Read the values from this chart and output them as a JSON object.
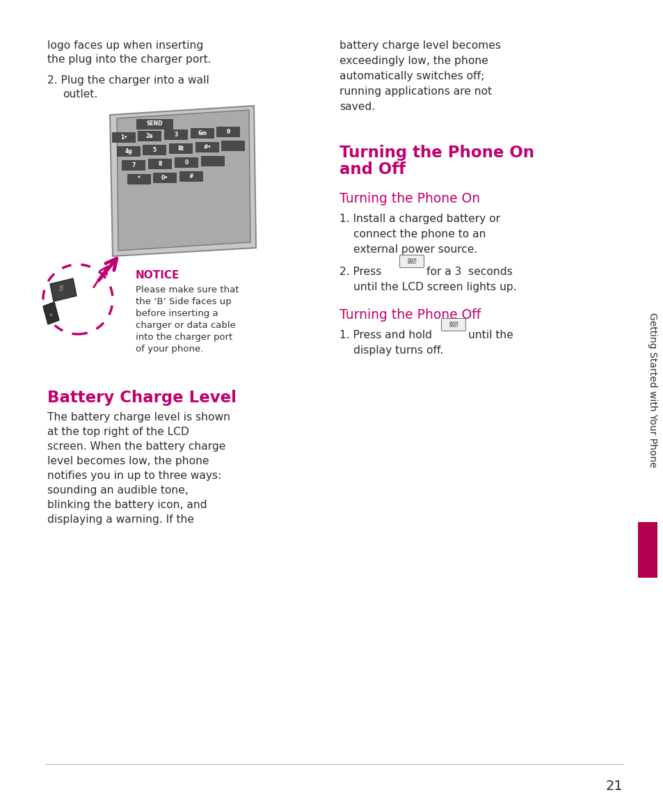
{
  "bg_color": "#ffffff",
  "text_color": "#2d2d2d",
  "heading_color": "#c0006e",
  "notice_color": "#c0006e",
  "sidebar_color": "#b0004e",
  "page_number": "21",
  "sidebar_text": "Getting Started with Your Phone",
  "top_left_line1": "logo faces up when inserting",
  "top_left_line2": "the plug into the charger port.",
  "top_left_line3": "2. Plug the charger into a wall",
  "top_left_line4": "outlet.",
  "top_right_text": [
    "battery charge level becomes",
    "exceedingly low, the phone",
    "automatically switches off;",
    "running applications are not",
    "saved."
  ],
  "notice_label": "NOTICE",
  "notice_text": [
    "Please make sure that",
    "the ‘B’ Side faces up",
    "before inserting a",
    "charger or data cable",
    "into the charger port",
    "of your phone."
  ],
  "section1_title": "Battery Charge Level",
  "section1_body": [
    "The battery charge level is shown",
    "at the top right of the LCD",
    "screen. When the battery charge",
    "level becomes low, the phone",
    "notifies you in up to three ways:",
    "sounding an audible tone,",
    "blinking the battery icon, and",
    "displaying a warning. If the"
  ],
  "section2_title_line1": "Turning the Phone On",
  "section2_title_line2": "and Off",
  "section3_title": "Turning the Phone On",
  "section4_title": "Turning the Phone Off",
  "line_color": "#aaaaaa",
  "dashed_circle_color": "#c0006e",
  "arrow_color": "#c0006e",
  "phone_body_color": "#d0d0d0",
  "phone_edge_color": "#999999",
  "key_color": "#555555",
  "key_edge_color": "#444444"
}
